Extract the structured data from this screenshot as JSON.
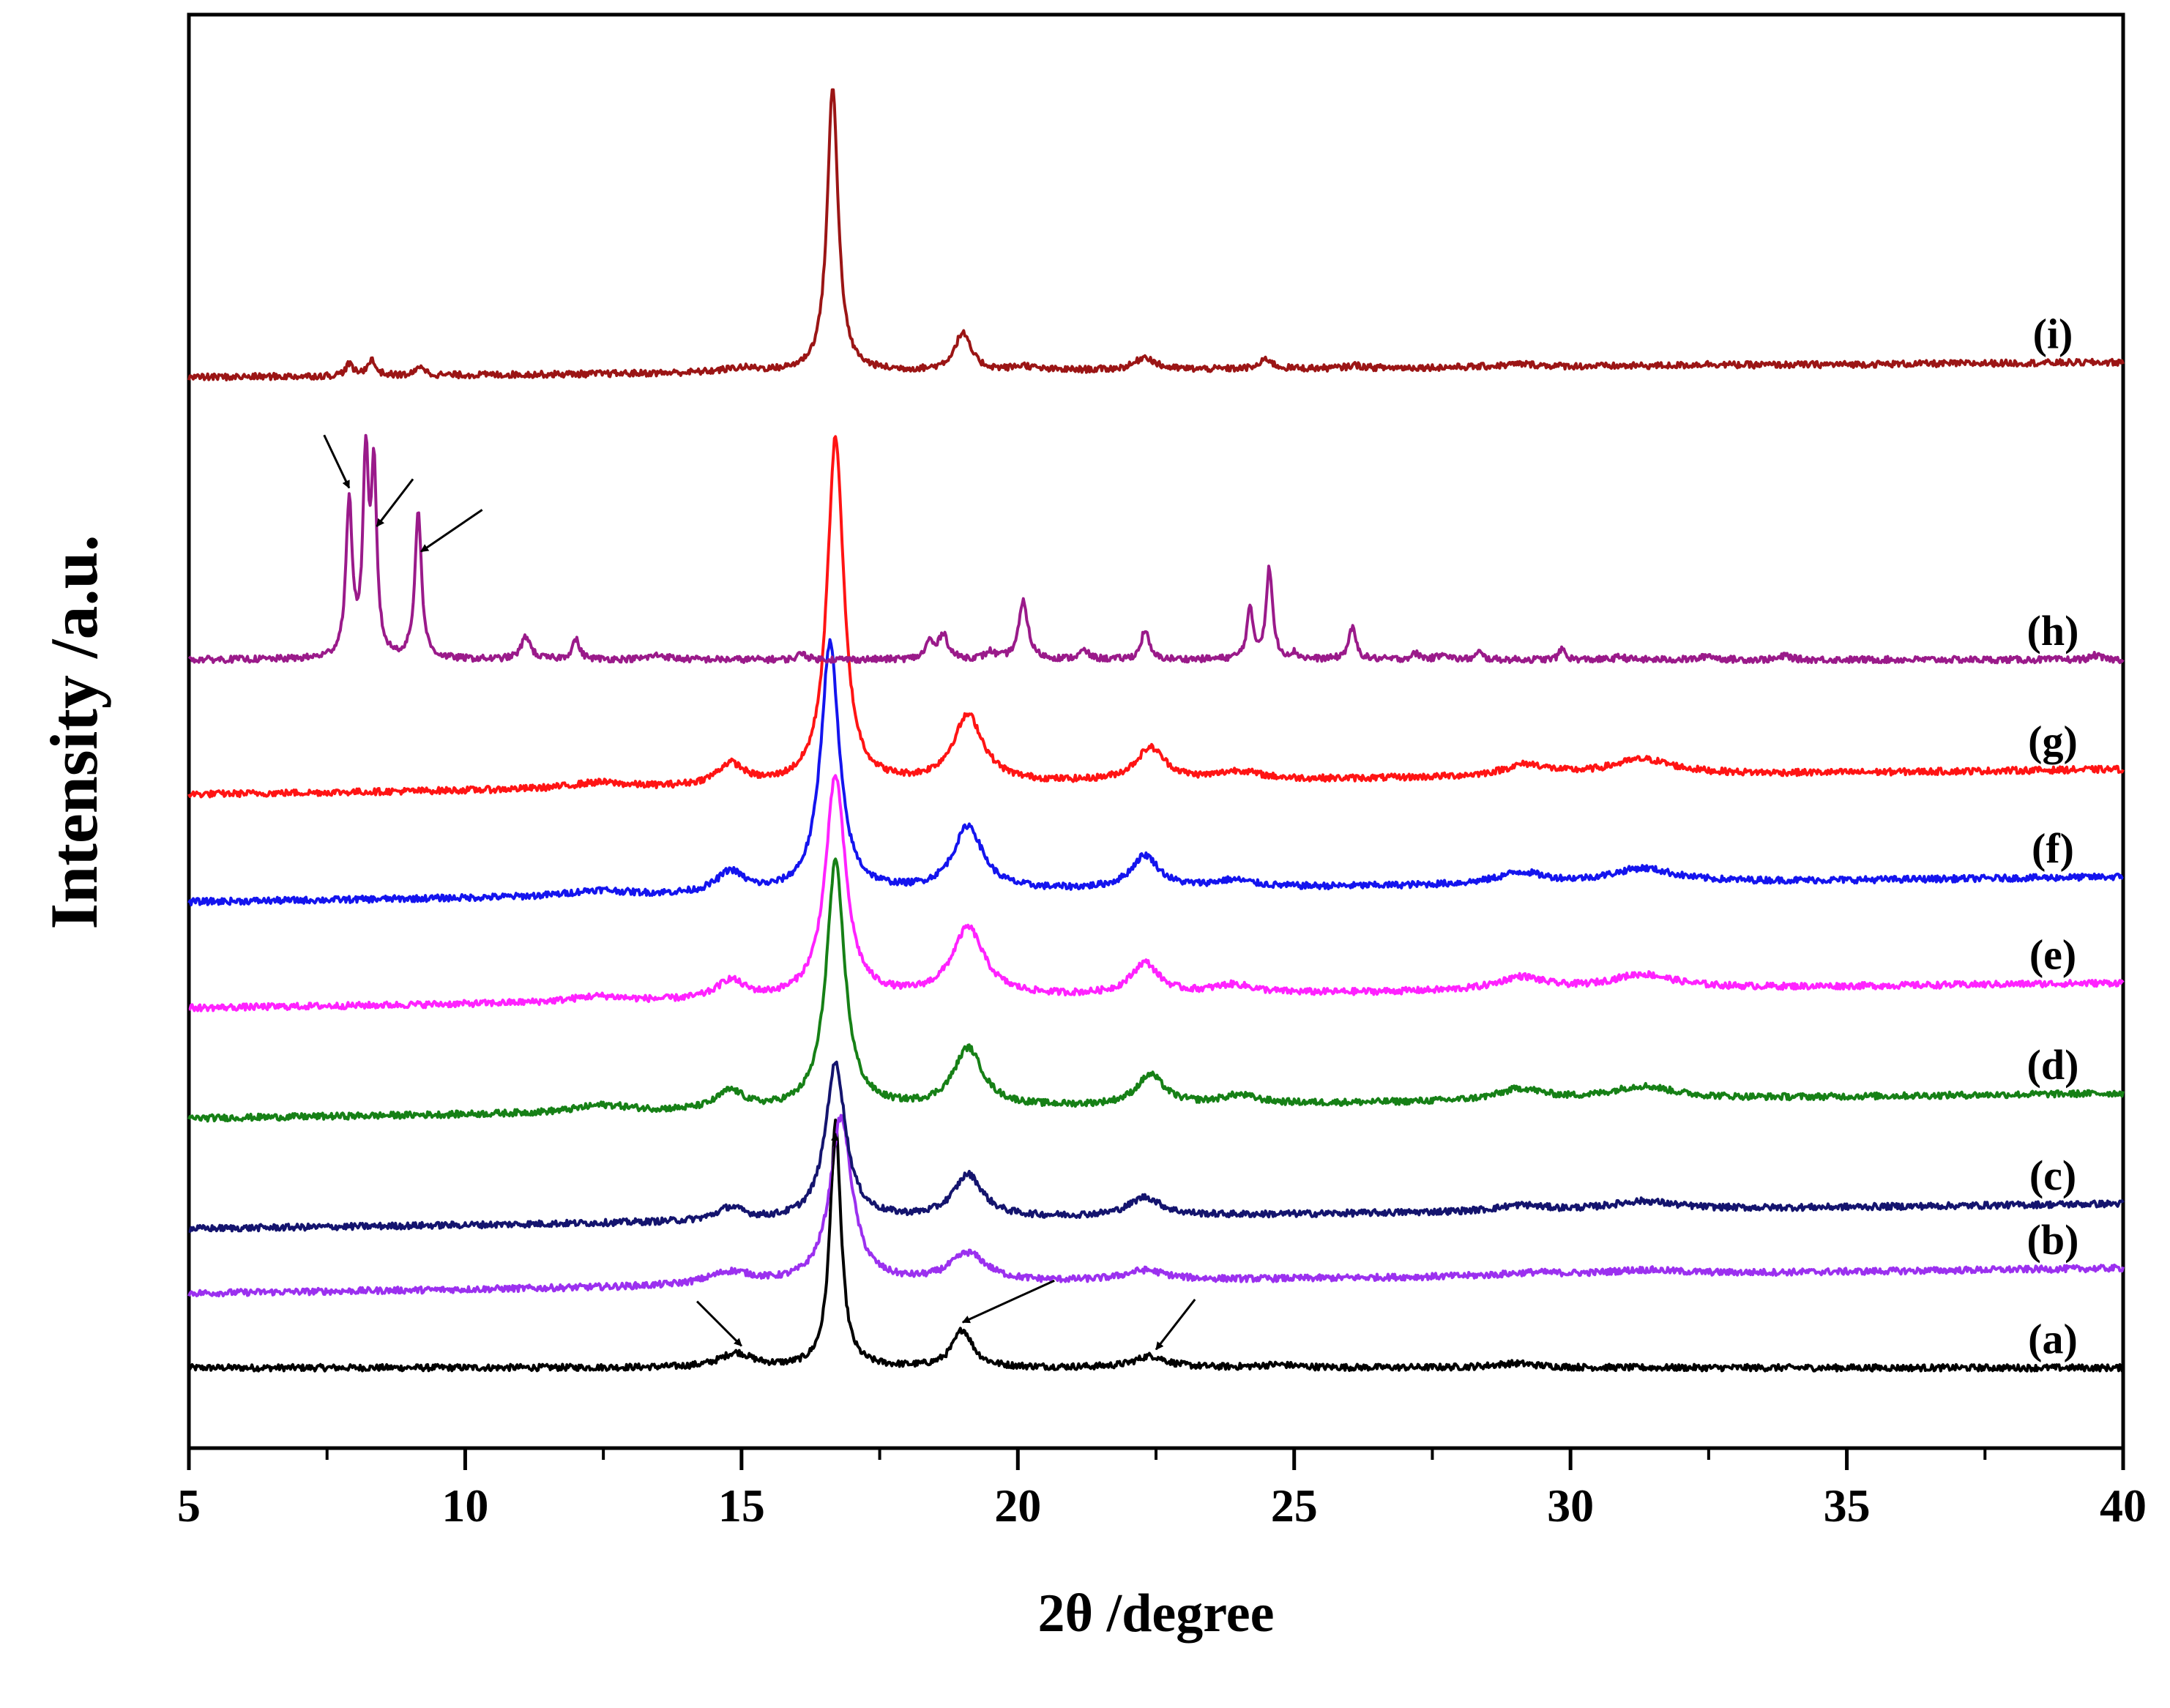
{
  "chart_data": {
    "type": "line",
    "title": "",
    "xlabel": "2θ /degree",
    "ylabel": "Intensity /a.u.",
    "xlim": [
      5,
      40
    ],
    "ylim": [
      0,
      100
    ],
    "x_ticks": [
      5,
      10,
      15,
      20,
      25,
      30,
      35,
      40
    ],
    "x_tick_labels": [
      "5",
      "10",
      "15",
      "20",
      "25",
      "30",
      "35",
      "40"
    ],
    "y_ticks_shown": false,
    "grid": false,
    "series": [
      {
        "name": "(a)",
        "label": "(a)",
        "color": "#000000",
        "baseline": 5.6,
        "slope": 0.0,
        "peaks": [
          [
            14.9,
            1.0,
            0.35
          ],
          [
            16.7,
            17.0,
            0.12
          ],
          [
            19.0,
            2.6,
            0.22
          ],
          [
            22.4,
            0.8,
            0.35
          ],
          [
            24.7,
            0.2,
            0.4
          ],
          [
            29.0,
            0.3,
            0.5
          ]
        ]
      },
      {
        "name": "(b)",
        "label": "(b)",
        "color": "#9b30ef",
        "baseline": 10.8,
        "slope": 0.05,
        "peaks": [
          [
            14.8,
            0.9,
            0.5
          ],
          [
            16.8,
            11.6,
            0.24
          ],
          [
            19.1,
            2.0,
            0.4
          ],
          [
            22.3,
            0.7,
            0.45
          ],
          [
            29.3,
            0.2,
            0.6
          ],
          [
            31.3,
            0.3,
            0.8
          ]
        ]
      },
      {
        "name": "(c)",
        "label": "(c)",
        "color": "#14146e",
        "baseline": 15.3,
        "slope": 0.05,
        "peaks": [
          [
            14.8,
            0.9,
            0.3
          ],
          [
            16.7,
            10.9,
            0.22
          ],
          [
            19.1,
            3.0,
            0.32
          ],
          [
            22.3,
            1.3,
            0.35
          ],
          [
            29.1,
            0.4,
            0.5
          ],
          [
            31.3,
            0.6,
            0.7
          ]
        ]
      },
      {
        "name": "(d)",
        "label": "(d)",
        "color": "#168016",
        "baseline": 23.0,
        "slope": 0.05,
        "peaks": [
          [
            12.5,
            0.5,
            0.6
          ],
          [
            14.8,
            1.3,
            0.3
          ],
          [
            16.7,
            17.2,
            0.2
          ],
          [
            19.1,
            4.1,
            0.32
          ],
          [
            22.4,
            2.1,
            0.3
          ],
          [
            24.0,
            0.6,
            0.4
          ],
          [
            29.1,
            0.8,
            0.5
          ],
          [
            31.3,
            0.9,
            0.7
          ]
        ]
      },
      {
        "name": "(e)",
        "label": "(e)",
        "color": "#ff22ff",
        "baseline": 30.7,
        "slope": 0.05,
        "peaks": [
          [
            12.4,
            0.4,
            0.6
          ],
          [
            14.8,
            1.3,
            0.3
          ],
          [
            16.7,
            15.5,
            0.22
          ],
          [
            19.1,
            4.8,
            0.35
          ],
          [
            22.3,
            2.2,
            0.3
          ],
          [
            23.9,
            0.6,
            0.45
          ],
          [
            29.1,
            0.9,
            0.5
          ],
          [
            31.3,
            1.0,
            0.7
          ]
        ]
      },
      {
        "name": "(f)",
        "label": "(f)",
        "color": "#1414ee",
        "baseline": 38.1,
        "slope": 0.05,
        "peaks": [
          [
            12.4,
            0.4,
            0.6
          ],
          [
            14.8,
            1.5,
            0.3
          ],
          [
            16.6,
            17.4,
            0.2
          ],
          [
            19.1,
            4.5,
            0.32
          ],
          [
            22.3,
            2.3,
            0.3
          ],
          [
            23.9,
            0.5,
            0.45
          ],
          [
            29.1,
            0.8,
            0.5
          ],
          [
            31.3,
            1.0,
            0.7
          ]
        ]
      },
      {
        "name": "(g)",
        "label": "(g)",
        "color": "#ff1414",
        "baseline": 45.6,
        "slope": 0.05,
        "peaks": [
          [
            12.4,
            0.4,
            0.6
          ],
          [
            14.8,
            1.5,
            0.3
          ],
          [
            16.7,
            24.2,
            0.18
          ],
          [
            19.1,
            4.7,
            0.33
          ],
          [
            22.4,
            2.3,
            0.32
          ],
          [
            24.0,
            0.6,
            0.45
          ],
          [
            29.2,
            0.8,
            0.5
          ],
          [
            31.3,
            1.1,
            0.7
          ]
        ]
      },
      {
        "name": "(h)",
        "label": "(h)",
        "color": "#9a1a8a",
        "baseline": 55.0,
        "slope": 0.0,
        "peaks": [
          [
            7.9,
            10.7,
            0.07
          ],
          [
            8.2,
            13.5,
            0.06
          ],
          [
            8.35,
            12.5,
            0.06
          ],
          [
            9.15,
            10.4,
            0.07
          ],
          [
            11.1,
            1.6,
            0.1
          ],
          [
            12.0,
            1.4,
            0.08
          ],
          [
            13.5,
            0.3,
            0.2
          ],
          [
            16.1,
            0.5,
            0.08
          ],
          [
            18.4,
            1.2,
            0.08
          ],
          [
            18.65,
            1.8,
            0.1
          ],
          [
            19.5,
            0.5,
            0.1
          ],
          [
            20.1,
            4.0,
            0.1
          ],
          [
            21.2,
            0.6,
            0.1
          ],
          [
            22.3,
            2.1,
            0.08
          ],
          [
            24.2,
            3.4,
            0.07
          ],
          [
            24.55,
            6.3,
            0.07
          ],
          [
            25.0,
            0.4,
            0.08
          ],
          [
            26.05,
            2.2,
            0.08
          ],
          [
            27.2,
            0.4,
            0.1
          ],
          [
            27.7,
            0.5,
            0.08
          ],
          [
            28.35,
            0.5,
            0.07
          ],
          [
            29.85,
            0.8,
            0.06
          ],
          [
            30.9,
            0.2,
            0.1
          ],
          [
            32.5,
            0.3,
            0.12
          ],
          [
            33.9,
            0.3,
            0.1
          ],
          [
            39.5,
            0.3,
            0.1
          ]
        ]
      },
      {
        "name": "(i)",
        "label": "(i)",
        "color": "#9b1515",
        "baseline": 74.7,
        "slope": 0.03,
        "peaks": [
          [
            7.9,
            0.8,
            0.08
          ],
          [
            8.3,
            1.1,
            0.09
          ],
          [
            9.2,
            0.7,
            0.08
          ],
          [
            15.0,
            0.3,
            0.4
          ],
          [
            16.65,
            19.8,
            0.12
          ],
          [
            19.0,
            2.6,
            0.18
          ],
          [
            20.1,
            0.3,
            0.2
          ],
          [
            22.3,
            0.9,
            0.2
          ],
          [
            24.5,
            0.7,
            0.12
          ],
          [
            26.1,
            0.2,
            0.15
          ],
          [
            29.1,
            0.2,
            0.4
          ],
          [
            32.5,
            0.1,
            0.3
          ]
        ]
      }
    ],
    "annotations": [
      {
        "name": "arrow-a-15",
        "series": "(a)",
        "target_x": 15.0,
        "from": [
          -16,
          16
        ]
      },
      {
        "name": "arrow-a-16-7",
        "series": "(a)",
        "target_x": 16.7,
        "from": [
          -2,
          -28
        ]
      },
      {
        "name": "arrow-a-19",
        "series": "(a)",
        "target_x": 19.0,
        "from": [
          33,
          15
        ]
      },
      {
        "name": "arrow-a-22-5",
        "series": "(a)",
        "target_x": 22.5,
        "from": [
          14,
          18
        ]
      },
      {
        "name": "arrow-h-7-9",
        "series": "(h)",
        "target_x": 7.9,
        "from": [
          -9,
          19
        ]
      },
      {
        "name": "arrow-h-8-4",
        "series": "(h)",
        "target_x": 8.4,
        "from": [
          13,
          17
        ]
      },
      {
        "name": "arrow-h-9-2",
        "series": "(h)",
        "target_x": 9.2,
        "from": [
          22,
          15
        ]
      }
    ]
  }
}
